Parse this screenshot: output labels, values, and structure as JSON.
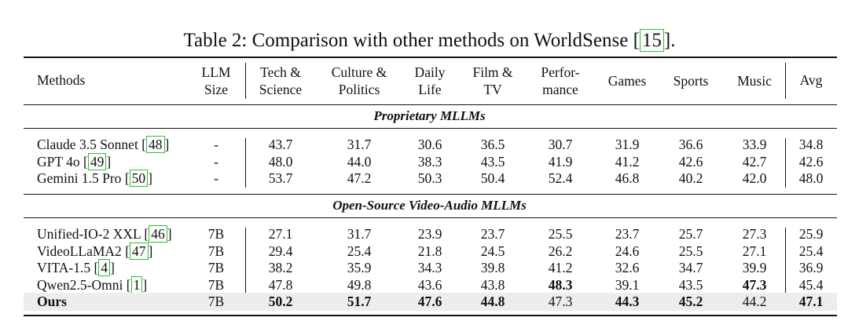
{
  "caption": {
    "prefix": "Table 2: Comparison with other methods on WorldSense [",
    "cite": "15",
    "suffix": "]."
  },
  "header": {
    "methods": "Methods",
    "llm_size": [
      "LLM",
      "Size"
    ],
    "columns": [
      [
        "Tech &",
        "Science"
      ],
      [
        "Culture &",
        "Politics"
      ],
      [
        "Daily",
        "Life"
      ],
      [
        "Film &",
        "TV"
      ],
      [
        "Perfor-",
        "mance"
      ],
      [
        "Games"
      ],
      [
        "Sports"
      ],
      [
        "Music"
      ]
    ],
    "avg": "Avg"
  },
  "sections": [
    {
      "title": "Proprietary MLLMs",
      "rows": [
        {
          "method": "Claude 3.5 Sonnet ",
          "cite": "48",
          "size": "-",
          "values": [
            "43.7",
            "31.7",
            "30.6",
            "36.5",
            "30.7",
            "31.9",
            "36.6",
            "33.9"
          ],
          "avg": "34.8"
        },
        {
          "method": "GPT 4o ",
          "cite": "49",
          "size": "-",
          "values": [
            "48.0",
            "44.0",
            "38.3",
            "43.5",
            "41.9",
            "41.2",
            "42.6",
            "42.7"
          ],
          "avg": "42.6"
        },
        {
          "method": "Gemini 1.5 Pro ",
          "cite": "50",
          "size": "-",
          "values": [
            "53.7",
            "47.2",
            "50.3",
            "50.4",
            "52.4",
            "46.8",
            "40.2",
            "42.0"
          ],
          "avg": "48.0"
        }
      ]
    },
    {
      "title": "Open-Source Video-Audio MLLMs",
      "rows": [
        {
          "method": "Unified-IO-2 XXL ",
          "cite": "46",
          "size": "7B",
          "values": [
            "27.1",
            "31.7",
            "23.9",
            "23.7",
            "25.5",
            "23.7",
            "25.7",
            "27.3"
          ],
          "avg": "25.9"
        },
        {
          "method": "VideoLLaMA2 ",
          "cite": "47",
          "size": "7B",
          "values": [
            "29.4",
            "25.4",
            "21.8",
            "24.5",
            "26.2",
            "24.6",
            "25.5",
            "27.1"
          ],
          "avg": "25.4"
        },
        {
          "method": "VITA-1.5 ",
          "cite": "4",
          "size": "7B",
          "values": [
            "38.2",
            "35.9",
            "34.3",
            "39.8",
            "41.2",
            "32.6",
            "34.7",
            "39.9"
          ],
          "avg": "36.9"
        },
        {
          "method": "Qwen2.5-Omni ",
          "cite": "1",
          "size": "7B",
          "values": [
            "47.8",
            "49.8",
            "43.6",
            "43.8",
            "48.3",
            "39.1",
            "43.5",
            "47.3"
          ],
          "avg": "45.4",
          "bold": [
            4,
            7
          ]
        },
        {
          "method": "Ours",
          "cite": "",
          "size": "7B",
          "values": [
            "50.2",
            "51.7",
            "47.6",
            "44.8",
            "47.3",
            "44.3",
            "45.2",
            "44.2"
          ],
          "avg": "47.1",
          "bold": [
            0,
            1,
            2,
            3,
            5,
            6
          ],
          "avg_bold": true,
          "method_bold": true,
          "highlight": true
        }
      ]
    }
  ]
}
